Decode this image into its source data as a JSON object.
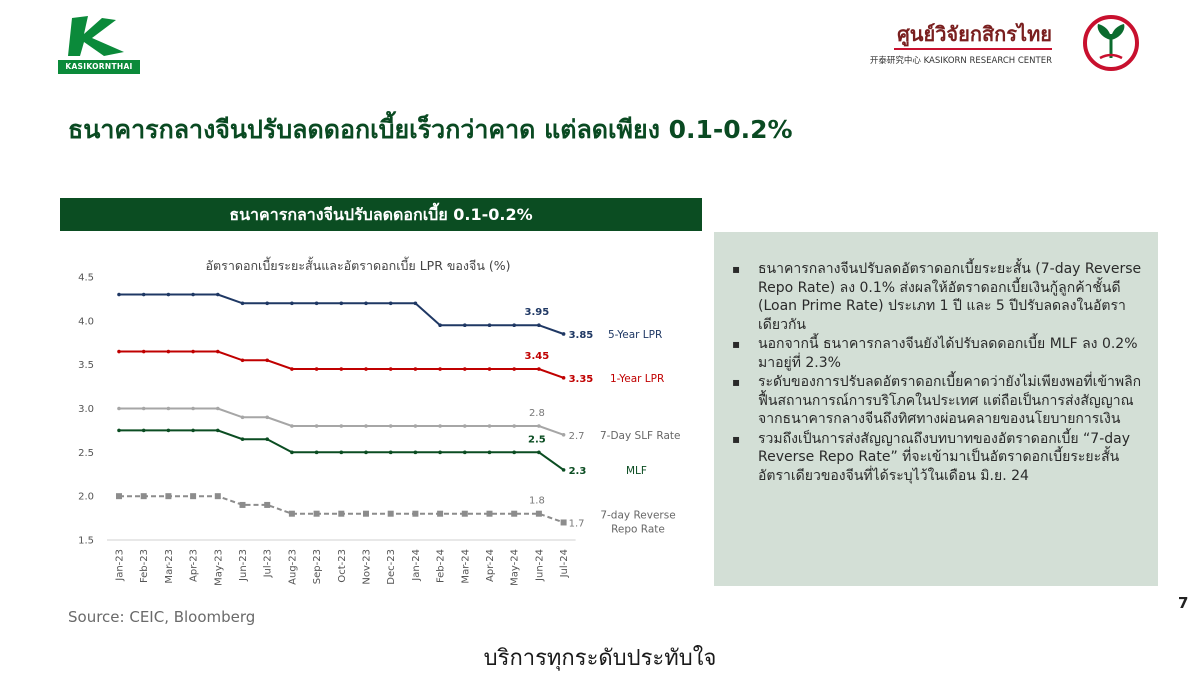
{
  "header": {
    "left_logo_text": "KASIKORNTHAI",
    "right_logo_title": "ศูนย์วิจัยกสิกรไทย",
    "right_logo_subtitle": "开泰研究中心 KASIKORN RESEARCH CENTER"
  },
  "main_title": "ธนาคารกลางจีนปรับลดดอกเบี้ยเร็วกว่าคาด แต่ลดเพียง 0.1-0.2%",
  "chart_banner": "ธนาคารกลางจีนปรับลดดอกเบี้ย 0.1-0.2%",
  "chart_data": {
    "type": "line",
    "title": "อัตราดอกเบี้ยระยะสั้นและอัตราดอกเบี้ย LPR ของจีน (%)",
    "xlabel": "",
    "ylabel": "",
    "categories": [
      "Jan-23",
      "Feb-23",
      "Mar-23",
      "Apr-23",
      "May-23",
      "Jun-23",
      "Jul-23",
      "Aug-23",
      "Sep-23",
      "Oct-23",
      "Nov-23",
      "Dec-23",
      "Jan-24",
      "Feb-24",
      "Mar-24",
      "Apr-24",
      "May-24",
      "Jun-24",
      "Jul-24"
    ],
    "ylim": [
      1.5,
      4.5
    ],
    "yticks": [
      "1.5",
      "2.0",
      "2.5",
      "3.0",
      "3.5",
      "4.0",
      "4.5"
    ],
    "grid": false,
    "series": [
      {
        "name": "5-Year LPR",
        "color": "#1f3864",
        "dash": false,
        "values": [
          4.3,
          4.3,
          4.3,
          4.3,
          4.3,
          4.2,
          4.2,
          4.2,
          4.2,
          4.2,
          4.2,
          4.2,
          4.2,
          3.95,
          3.95,
          3.95,
          3.95,
          3.95,
          3.85
        ],
        "label_prev": "3.95",
        "label_last": "3.85"
      },
      {
        "name": "1-Year LPR",
        "color": "#c00000",
        "dash": false,
        "values": [
          3.65,
          3.65,
          3.65,
          3.65,
          3.65,
          3.55,
          3.55,
          3.45,
          3.45,
          3.45,
          3.45,
          3.45,
          3.45,
          3.45,
          3.45,
          3.45,
          3.45,
          3.45,
          3.35
        ],
        "label_prev": "3.45",
        "label_last": "3.35"
      },
      {
        "name": "7-Day SLF Rate",
        "color": "#a6a6a6",
        "dash": false,
        "values": [
          3.0,
          3.0,
          3.0,
          3.0,
          3.0,
          2.9,
          2.9,
          2.8,
          2.8,
          2.8,
          2.8,
          2.8,
          2.8,
          2.8,
          2.8,
          2.8,
          2.8,
          2.8,
          2.7
        ],
        "label_prev": "2.8",
        "label_last": "2.7"
      },
      {
        "name": "MLF",
        "color": "#0b4d22",
        "dash": false,
        "values": [
          2.75,
          2.75,
          2.75,
          2.75,
          2.75,
          2.65,
          2.65,
          2.5,
          2.5,
          2.5,
          2.5,
          2.5,
          2.5,
          2.5,
          2.5,
          2.5,
          2.5,
          2.5,
          2.3
        ],
        "label_prev": "2.5",
        "label_last": "2.3"
      },
      {
        "name": "7-day Reverse Repo Rate",
        "color": "#8c8c8c",
        "dash": true,
        "values": [
          2.0,
          2.0,
          2.0,
          2.0,
          2.0,
          1.9,
          1.9,
          1.8,
          1.8,
          1.8,
          1.8,
          1.8,
          1.8,
          1.8,
          1.8,
          1.8,
          1.8,
          1.8,
          1.7
        ],
        "label_prev": "1.8",
        "label_last": "1.7"
      }
    ]
  },
  "bullets": [
    "ธนาคารกลางจีนปรับลดอัตราดอกเบี้ยระยะสั้น (7-day Reverse Repo Rate) ลง 0.1% ส่งผลให้อัตราดอกเบี้ยเงินกู้ลูกค้าชั้นดี (Loan Prime Rate) ประเภท 1 ปี และ 5 ปีปรับลดลงในอัตราเดียวกัน",
    "นอกจากนี้ ธนาคารกลางจีนยังได้ปรับลดดอกเบี้ย MLF ลง 0.2% มาอยู่ที่ 2.3%",
    "ระดับของการปรับลดอัตราดอกเบี้ยคาดว่ายังไม่เพียงพอที่เข้าพลิกฟื้นสถานการณ์การบริโภคในประเทศ แต่ถือเป็นการส่งสัญญาณจากธนาคารกลางจีนถึงทิศทางผ่อนคลายของนโยบายการเงิน",
    "รวมถึงเป็นการส่งสัญญาณถึงบทบาทของอัตราดอกเบี้ย “7-day Reverse Repo Rate” ที่จะเข้ามาเป็นอัตราดอกเบี้ยระยะสั้นอัตราเดียวของจีนที่ได้ระบุไว้ในเดือน มิ.ย. 24"
  ],
  "source": "Source: CEIC, Bloomberg",
  "page_number": "7",
  "footer": "บริการทุกระดับประทับใจ"
}
